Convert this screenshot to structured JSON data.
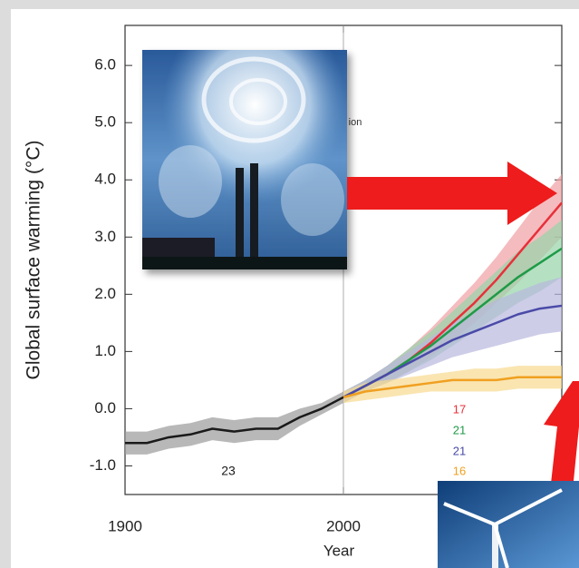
{
  "chart_data": {
    "type": "line",
    "y_label": "Global surface warming (°C)",
    "x_label": "Year",
    "xlim": [
      1900,
      2100
    ],
    "xticks": [
      1900,
      2000
    ],
    "ylim": [
      -1.5,
      6.7
    ],
    "yticks": [
      {
        "value": -1,
        "label": "-1.0"
      },
      {
        "value": 0,
        "label": "0.0"
      },
      {
        "value": 1,
        "label": "1.0"
      },
      {
        "value": 2,
        "label": "2.0"
      },
      {
        "value": 3,
        "label": "3.0"
      },
      {
        "value": 4,
        "label": "4.0"
      },
      {
        "value": 5,
        "label": "5.0"
      },
      {
        "value": 6,
        "label": "6.0"
      }
    ],
    "x": [
      1900,
      1910,
      1920,
      1930,
      1940,
      1950,
      1960,
      1970,
      1980,
      1990,
      2000,
      2010,
      2020,
      2030,
      2040,
      2050,
      2060,
      2070,
      2080,
      2090,
      2100
    ],
    "series": [
      {
        "color": "#1a1a1a",
        "band_color": "#9a9a9a",
        "values": [
          -0.6,
          -0.6,
          -0.5,
          -0.45,
          -0.35,
          -0.4,
          -0.35,
          -0.35,
          -0.15,
          0.0,
          0.2,
          null,
          null,
          null,
          null,
          null,
          null,
          null,
          null,
          null,
          null
        ],
        "lower": [
          -0.8,
          -0.8,
          -0.7,
          -0.65,
          -0.55,
          -0.6,
          -0.55,
          -0.55,
          -0.3,
          -0.1,
          0.1,
          null,
          null,
          null,
          null,
          null,
          null,
          null,
          null,
          null,
          null
        ],
        "upper": [
          -0.4,
          -0.4,
          -0.3,
          -0.25,
          -0.15,
          -0.2,
          -0.15,
          -0.15,
          0.0,
          0.1,
          0.3,
          null,
          null,
          null,
          null,
          null,
          null,
          null,
          null,
          null,
          null
        ]
      },
      {
        "color": "#e8303a",
        "band_color": "#f0a0a4",
        "values": [
          null,
          null,
          null,
          null,
          null,
          null,
          null,
          null,
          null,
          null,
          0.2,
          0.4,
          0.6,
          0.85,
          1.15,
          1.5,
          1.85,
          2.25,
          2.7,
          3.15,
          3.6
        ],
        "lower": [
          null,
          null,
          null,
          null,
          null,
          null,
          null,
          null,
          null,
          null,
          0.1,
          0.3,
          0.45,
          0.65,
          0.9,
          1.2,
          1.5,
          1.85,
          2.2,
          2.6,
          3.0
        ],
        "upper": [
          null,
          null,
          null,
          null,
          null,
          null,
          null,
          null,
          null,
          null,
          0.3,
          0.5,
          0.75,
          1.05,
          1.4,
          1.8,
          2.2,
          2.65,
          3.15,
          3.65,
          4.1
        ]
      },
      {
        "color": "#1f9a48",
        "band_color": "#96d4a8",
        "values": [
          null,
          null,
          null,
          null,
          null,
          null,
          null,
          null,
          null,
          null,
          0.2,
          0.4,
          0.6,
          0.85,
          1.1,
          1.4,
          1.7,
          2.0,
          2.3,
          2.55,
          2.8
        ],
        "lower": [
          null,
          null,
          null,
          null,
          null,
          null,
          null,
          null,
          null,
          null,
          0.1,
          0.3,
          0.45,
          0.65,
          0.85,
          1.1,
          1.35,
          1.6,
          1.85,
          2.05,
          2.3
        ],
        "upper": [
          null,
          null,
          null,
          null,
          null,
          null,
          null,
          null,
          null,
          null,
          0.3,
          0.5,
          0.75,
          1.05,
          1.35,
          1.7,
          2.05,
          2.4,
          2.75,
          3.0,
          3.3
        ]
      },
      {
        "color": "#4a4aa8",
        "band_color": "#b8b8de",
        "values": [
          null,
          null,
          null,
          null,
          null,
          null,
          null,
          null,
          null,
          null,
          0.2,
          0.4,
          0.6,
          0.8,
          1.0,
          1.2,
          1.35,
          1.5,
          1.65,
          1.75,
          1.8
        ],
        "lower": [
          null,
          null,
          null,
          null,
          null,
          null,
          null,
          null,
          null,
          null,
          0.1,
          0.3,
          0.45,
          0.6,
          0.75,
          0.9,
          1.0,
          1.1,
          1.2,
          1.3,
          1.35
        ],
        "upper": [
          null,
          null,
          null,
          null,
          null,
          null,
          null,
          null,
          null,
          null,
          0.3,
          0.5,
          0.75,
          1.0,
          1.25,
          1.5,
          1.7,
          1.9,
          2.05,
          2.2,
          2.3
        ]
      },
      {
        "color": "#f0a020",
        "band_color": "#f8da90",
        "values": [
          null,
          null,
          null,
          null,
          null,
          null,
          null,
          null,
          null,
          null,
          0.2,
          0.3,
          0.35,
          0.4,
          0.45,
          0.5,
          0.5,
          0.5,
          0.55,
          0.55,
          0.55
        ],
        "lower": [
          null,
          null,
          null,
          null,
          null,
          null,
          null,
          null,
          null,
          null,
          0.1,
          0.15,
          0.2,
          0.25,
          0.3,
          0.3,
          0.3,
          0.3,
          0.35,
          0.35,
          0.35
        ],
        "upper": [
          null,
          null,
          null,
          null,
          null,
          null,
          null,
          null,
          null,
          null,
          0.3,
          0.45,
          0.5,
          0.55,
          0.6,
          0.65,
          0.7,
          0.7,
          0.75,
          0.75,
          0.75
        ]
      }
    ],
    "annotations": [
      {
        "text": "23",
        "color": "#1a1a1a"
      },
      {
        "text": "17",
        "color": "#e8303a"
      },
      {
        "text": "21",
        "color": "#1f9a48"
      },
      {
        "text": "21",
        "color": "#4a4aa8"
      },
      {
        "text": "16",
        "color": "#f0a020"
      },
      {
        "text": "ion",
        "color": "#333333"
      }
    ]
  }
}
